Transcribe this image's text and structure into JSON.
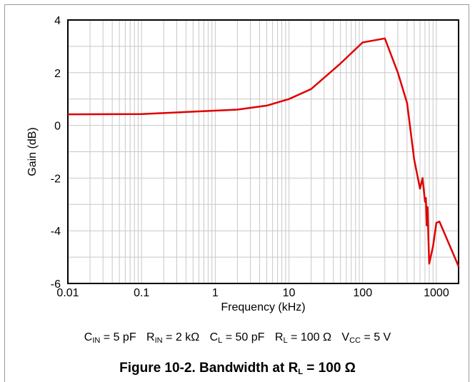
{
  "chart_data": {
    "type": "line",
    "title": "",
    "xlabel": "Frequency (kHz)",
    "ylabel": "Gain (dB)",
    "xscale": "log",
    "xlim": [
      0.01,
      2000
    ],
    "ylim": [
      -6,
      4
    ],
    "x_ticks": [
      0.01,
      0.1,
      1,
      10,
      100,
      1000
    ],
    "x_tick_labels": [
      "0.01",
      "0.1",
      "1",
      "10",
      "100",
      "1000"
    ],
    "y_ticks": [
      -6,
      -4,
      -2,
      0,
      2,
      4
    ],
    "y_tick_labels": [
      "-6",
      "-4",
      "-2",
      "0",
      "2",
      "4"
    ],
    "grid": true,
    "series": [
      {
        "color": "#e00000",
        "x": [
          0.01,
          0.1,
          0.5,
          2,
          5,
          10,
          20,
          50,
          100,
          200,
          300,
          400,
          500,
          600,
          650,
          700,
          720,
          740,
          760,
          780,
          800,
          850,
          900,
          1000,
          1100,
          2000
        ],
        "y": [
          0.42,
          0.43,
          0.52,
          0.6,
          0.75,
          1.0,
          1.38,
          2.35,
          3.15,
          3.3,
          2.0,
          0.85,
          -1.3,
          -2.4,
          -2.0,
          -2.9,
          -2.75,
          -3.8,
          -3.1,
          -4.3,
          -5.25,
          -4.9,
          -4.6,
          -3.7,
          -3.65,
          -5.35
        ]
      }
    ]
  },
  "conditions": {
    "cin": {
      "sym": "C",
      "sub": "IN",
      "rest": " = 5 pF"
    },
    "rin": {
      "sym": "R",
      "sub": "IN",
      "rest": " = 2 kΩ"
    },
    "cl": {
      "sym": "C",
      "sub": "L",
      "rest": " = 50 pF"
    },
    "rl": {
      "sym": "R",
      "sub": "L",
      "rest": " = 100 Ω"
    },
    "vcc": {
      "sym": "V",
      "sub": "CC",
      "rest": " = 5 V"
    }
  },
  "caption": {
    "prefix": "Figure 10-2. Bandwidth at R",
    "sub": "L",
    "suffix": " = 100 Ω"
  }
}
